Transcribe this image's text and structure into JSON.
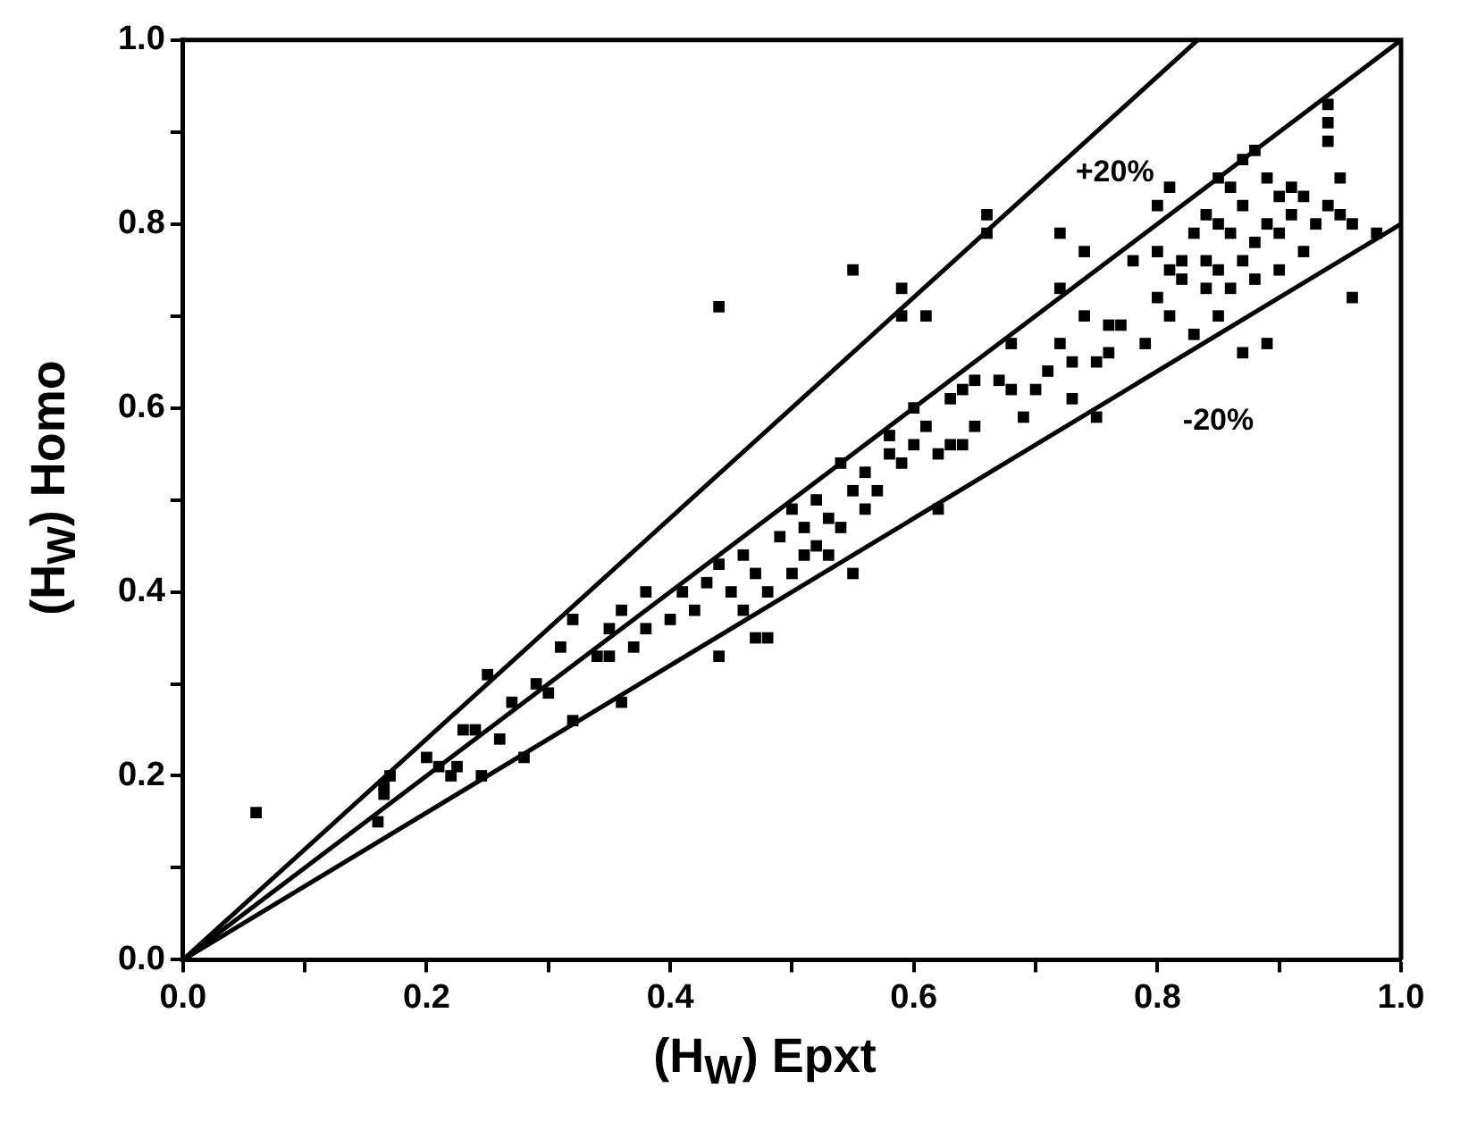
{
  "chart_data": {
    "type": "scatter",
    "xlabel": "(H$_{W}$) Epxt",
    "ylabel": "(H$_{W}$) Homo",
    "xlim": [
      0,
      1
    ],
    "ylim": [
      0,
      1
    ],
    "xticks": [
      {
        "value": 0,
        "label": "0.0"
      },
      {
        "value": 0.1,
        "label": null
      },
      0.2,
      {
        "value": 0.3,
        "label": null
      },
      0.4,
      {
        "value": 0.5,
        "label": null
      },
      0.6,
      {
        "value": 0.7,
        "label": null
      },
      0.8,
      {
        "value": 0.9,
        "label": null
      },
      {
        "value": 1,
        "label": "1.0"
      }
    ],
    "yticks": [
      {
        "value": 0,
        "label": "0.0"
      },
      {
        "value": 0.1,
        "label": null
      },
      0.2,
      {
        "value": 0.3,
        "label": null
      },
      0.4,
      {
        "value": 0.5,
        "label": null
      },
      0.6,
      {
        "value": 0.7,
        "label": null
      },
      0.8,
      {
        "value": 0.9,
        "label": null
      },
      {
        "value": 1,
        "label": "1.0"
      }
    ],
    "grid": false,
    "legend": false,
    "annotations": [
      "+20%",
      "-20%"
    ],
    "series": [
      {
        "type": "scatter",
        "marker": "square",
        "color": "#000000",
        "x": [
          0.06,
          0.16,
          0.165,
          0.165,
          0.17,
          0.2,
          0.21,
          0.22,
          0.225,
          0.23,
          0.24,
          0.245,
          0.25,
          0.26,
          0.27,
          0.28,
          0.29,
          0.3,
          0.31,
          0.32,
          0.32,
          0.34,
          0.35,
          0.35,
          0.36,
          0.36,
          0.37,
          0.38,
          0.38,
          0.4,
          0.41,
          0.42,
          0.43,
          0.44,
          0.44,
          0.44,
          0.45,
          0.46,
          0.46,
          0.47,
          0.47,
          0.48,
          0.48,
          0.49,
          0.5,
          0.5,
          0.51,
          0.51,
          0.52,
          0.52,
          0.53,
          0.53,
          0.54,
          0.54,
          0.55,
          0.55,
          0.55,
          0.56,
          0.56,
          0.57,
          0.58,
          0.58,
          0.59,
          0.59,
          0.59,
          0.6,
          0.6,
          0.61,
          0.61,
          0.62,
          0.62,
          0.63,
          0.63,
          0.64,
          0.64,
          0.65,
          0.65,
          0.66,
          0.66,
          0.67,
          0.68,
          0.68,
          0.69,
          0.7,
          0.71,
          0.72,
          0.72,
          0.72,
          0.73,
          0.73,
          0.74,
          0.74,
          0.75,
          0.75,
          0.76,
          0.76,
          0.77,
          0.78,
          0.79,
          0.8,
          0.8,
          0.8,
          0.81,
          0.81,
          0.81,
          0.82,
          0.82,
          0.83,
          0.83,
          0.84,
          0.84,
          0.84,
          0.85,
          0.85,
          0.85,
          0.85,
          0.86,
          0.86,
          0.86,
          0.87,
          0.87,
          0.87,
          0.87,
          0.88,
          0.88,
          0.88,
          0.89,
          0.89,
          0.89,
          0.9,
          0.9,
          0.9,
          0.91,
          0.91,
          0.92,
          0.92,
          0.93,
          0.94,
          0.94,
          0.94,
          0.94,
          0.95,
          0.95,
          0.96,
          0.96,
          0.98
        ],
        "values": [
          0.16,
          0.15,
          0.18,
          0.19,
          0.2,
          0.22,
          0.21,
          0.2,
          0.21,
          0.25,
          0.25,
          0.2,
          0.31,
          0.24,
          0.28,
          0.22,
          0.3,
          0.29,
          0.34,
          0.26,
          0.37,
          0.33,
          0.36,
          0.33,
          0.38,
          0.28,
          0.34,
          0.36,
          0.4,
          0.37,
          0.4,
          0.38,
          0.41,
          0.71,
          0.43,
          0.33,
          0.4,
          0.38,
          0.44,
          0.42,
          0.35,
          0.35,
          0.4,
          0.46,
          0.49,
          0.42,
          0.44,
          0.47,
          0.5,
          0.45,
          0.48,
          0.44,
          0.54,
          0.47,
          0.42,
          0.75,
          0.51,
          0.53,
          0.49,
          0.51,
          0.57,
          0.55,
          0.7,
          0.73,
          0.54,
          0.6,
          0.56,
          0.7,
          0.58,
          0.55,
          0.49,
          0.61,
          0.56,
          0.62,
          0.56,
          0.63,
          0.58,
          0.79,
          0.81,
          0.63,
          0.67,
          0.62,
          0.59,
          0.62,
          0.64,
          0.67,
          0.79,
          0.73,
          0.61,
          0.65,
          0.7,
          0.77,
          0.65,
          0.59,
          0.66,
          0.69,
          0.69,
          0.76,
          0.67,
          0.82,
          0.77,
          0.72,
          0.84,
          0.75,
          0.7,
          0.76,
          0.74,
          0.68,
          0.79,
          0.81,
          0.76,
          0.73,
          0.85,
          0.8,
          0.75,
          0.7,
          0.79,
          0.84,
          0.73,
          0.87,
          0.82,
          0.76,
          0.66,
          0.88,
          0.78,
          0.74,
          0.8,
          0.67,
          0.85,
          0.83,
          0.79,
          0.75,
          0.84,
          0.81,
          0.83,
          0.77,
          0.8,
          0.93,
          0.91,
          0.89,
          0.82,
          0.85,
          0.81,
          0.72,
          0.8,
          0.79
        ]
      },
      {
        "type": "line",
        "marker": "none",
        "color": "#000000",
        "x": [
          0,
          0.833
        ],
        "values": [
          0,
          1
        ]
      },
      {
        "type": "line",
        "marker": "none",
        "color": "#000000",
        "x": [
          0,
          1
        ],
        "values": [
          0,
          1
        ]
      },
      {
        "type": "line",
        "marker": "none",
        "color": "#000000",
        "x": [
          0,
          1
        ],
        "values": [
          0,
          0.8
        ]
      }
    ]
  }
}
